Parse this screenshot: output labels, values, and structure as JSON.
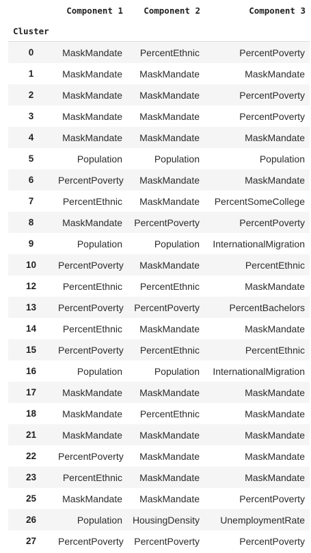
{
  "table": {
    "columns": [
      "Component 1",
      "Component 2",
      "Component 3"
    ],
    "index_name": "Cluster",
    "rows": [
      {
        "idx": "0",
        "cells": [
          "MaskMandate",
          "PercentEthnic",
          "PercentPoverty"
        ]
      },
      {
        "idx": "1",
        "cells": [
          "MaskMandate",
          "MaskMandate",
          "MaskMandate"
        ]
      },
      {
        "idx": "2",
        "cells": [
          "MaskMandate",
          "MaskMandate",
          "PercentPoverty"
        ]
      },
      {
        "idx": "3",
        "cells": [
          "MaskMandate",
          "MaskMandate",
          "PercentPoverty"
        ]
      },
      {
        "idx": "4",
        "cells": [
          "MaskMandate",
          "MaskMandate",
          "MaskMandate"
        ]
      },
      {
        "idx": "5",
        "cells": [
          "Population",
          "Population",
          "Population"
        ]
      },
      {
        "idx": "6",
        "cells": [
          "PercentPoverty",
          "MaskMandate",
          "MaskMandate"
        ]
      },
      {
        "idx": "7",
        "cells": [
          "PercentEthnic",
          "MaskMandate",
          "PercentSomeCollege"
        ]
      },
      {
        "idx": "8",
        "cells": [
          "MaskMandate",
          "PercentPoverty",
          "PercentPoverty"
        ]
      },
      {
        "idx": "9",
        "cells": [
          "Population",
          "Population",
          "InternationalMigration"
        ]
      },
      {
        "idx": "10",
        "cells": [
          "PercentPoverty",
          "MaskMandate",
          "PercentEthnic"
        ]
      },
      {
        "idx": "12",
        "cells": [
          "PercentEthnic",
          "PercentEthnic",
          "MaskMandate"
        ]
      },
      {
        "idx": "13",
        "cells": [
          "PercentPoverty",
          "PercentPoverty",
          "PercentBachelors"
        ]
      },
      {
        "idx": "14",
        "cells": [
          "PercentEthnic",
          "MaskMandate",
          "MaskMandate"
        ]
      },
      {
        "idx": "15",
        "cells": [
          "PercentPoverty",
          "PercentEthnic",
          "PercentEthnic"
        ]
      },
      {
        "idx": "16",
        "cells": [
          "Population",
          "Population",
          "InternationalMigration"
        ]
      },
      {
        "idx": "17",
        "cells": [
          "MaskMandate",
          "MaskMandate",
          "MaskMandate"
        ]
      },
      {
        "idx": "18",
        "cells": [
          "MaskMandate",
          "PercentEthnic",
          "MaskMandate"
        ]
      },
      {
        "idx": "21",
        "cells": [
          "MaskMandate",
          "MaskMandate",
          "MaskMandate"
        ]
      },
      {
        "idx": "22",
        "cells": [
          "PercentPoverty",
          "MaskMandate",
          "MaskMandate"
        ]
      },
      {
        "idx": "23",
        "cells": [
          "PercentEthnic",
          "MaskMandate",
          "MaskMandate"
        ]
      },
      {
        "idx": "25",
        "cells": [
          "MaskMandate",
          "MaskMandate",
          "PercentPoverty"
        ]
      },
      {
        "idx": "26",
        "cells": [
          "Population",
          "HousingDensity",
          "UnemploymentRate"
        ]
      },
      {
        "idx": "27",
        "cells": [
          "PercentPoverty",
          "PercentPoverty",
          "PercentPoverty"
        ]
      }
    ]
  }
}
